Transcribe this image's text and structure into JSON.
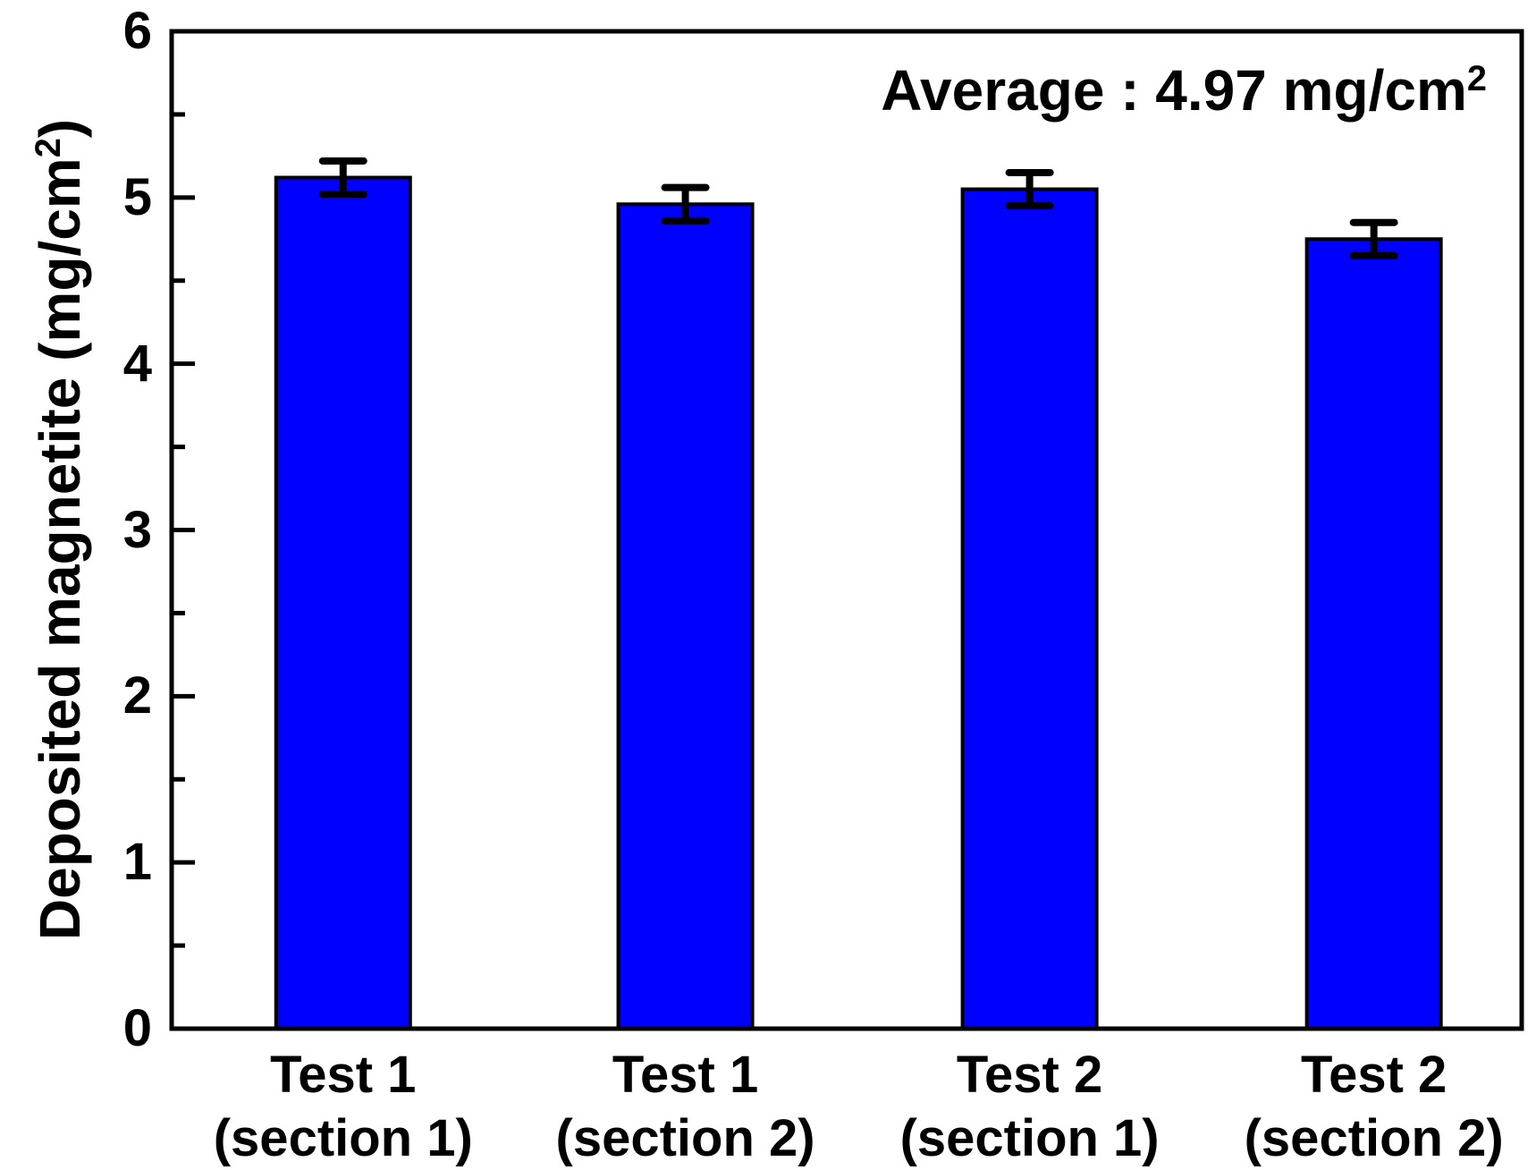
{
  "chart_data": {
    "type": "bar",
    "annotation": "Average : 4.97 mg/cm²",
    "ylabel": "Deposited magnetite (mg/cm²)",
    "xlabel": "",
    "categories": [
      "Test 1\n(section 1)",
      "Test 1\n(section 2)",
      "Test 2\n(section 1)",
      "Test 2\n(section 2)"
    ],
    "series": [
      {
        "name": "Deposited magnetite",
        "values": [
          5.12,
          4.96,
          5.05,
          4.75
        ],
        "errors": [
          0.1,
          0.1,
          0.1,
          0.1
        ]
      }
    ],
    "average": 4.97,
    "ylim": [
      0,
      6
    ],
    "ytick_labels": [
      "0",
      "1",
      "2",
      "3",
      "4",
      "5",
      "6"
    ],
    "ytick_major_step": 1,
    "ytick_minor_step": 0.5,
    "grid": false,
    "legend_position": "none",
    "bar_color": "#0000ff",
    "bar_outline_color": "#000000",
    "error_bar_color": "#000000",
    "axis_color": "#000000",
    "text_color": "#000000",
    "background_color": "#ffffff"
  }
}
